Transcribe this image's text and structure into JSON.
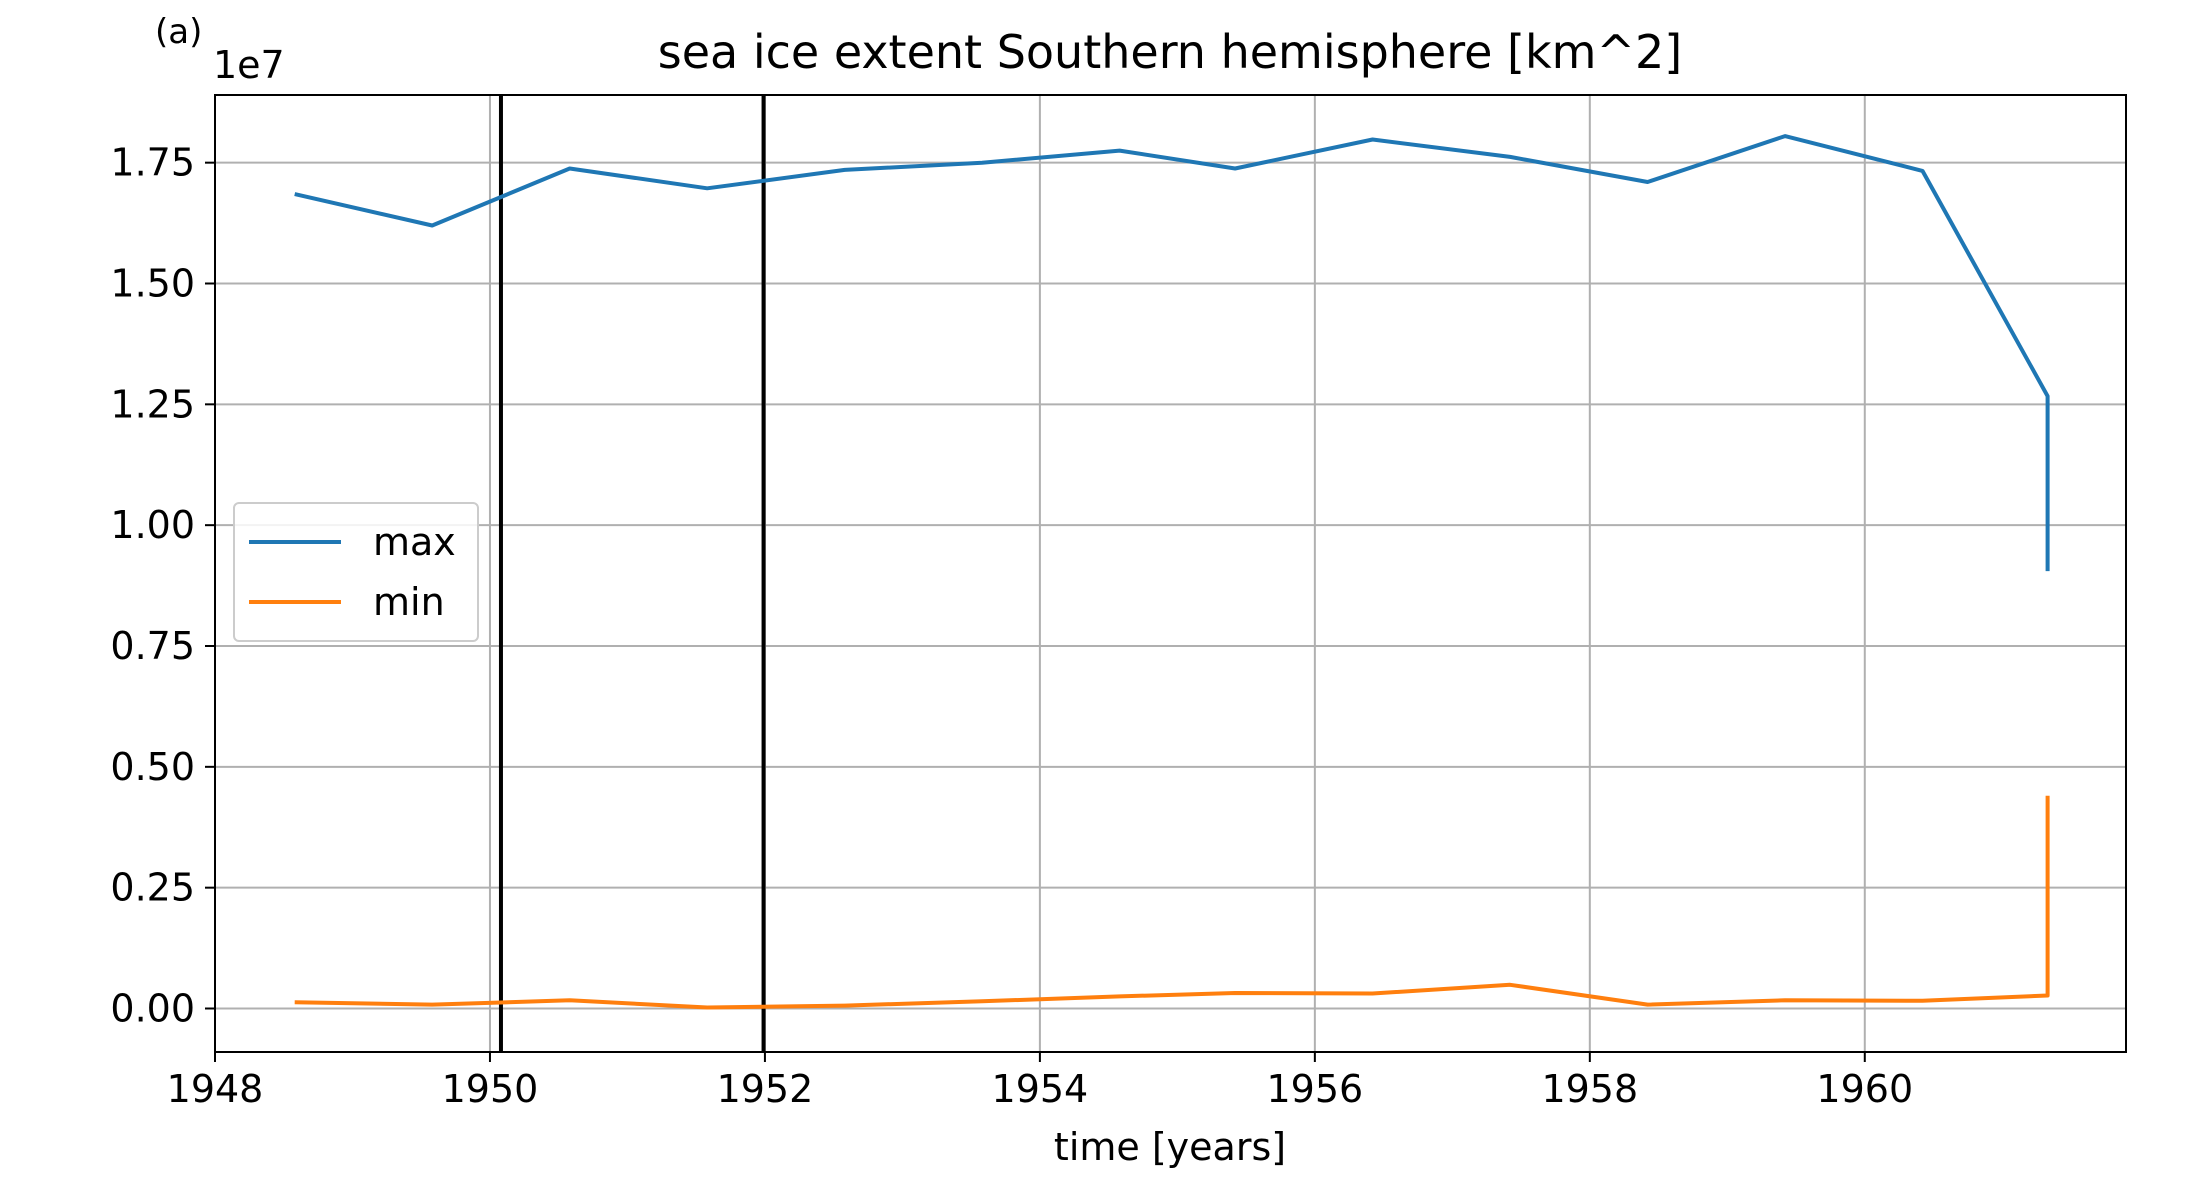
{
  "panel_label": "(a)",
  "chart_data": {
    "type": "line",
    "title": "sea ice extent Southern hemisphere [km^2]",
    "xlabel": "time [years]",
    "ylabel": "",
    "y_offset_label": "1e7",
    "xlim": [
      1948.0,
      1961.9
    ],
    "ylim": [
      -0.09,
      1.89
    ],
    "x_ticks": [
      1948,
      1950,
      1952,
      1954,
      1956,
      1958,
      1960
    ],
    "x_tick_labels": [
      "1948",
      "1950",
      "1952",
      "1954",
      "1956",
      "1958",
      "1960"
    ],
    "y_ticks": [
      0.0,
      0.25,
      0.5,
      0.75,
      1.0,
      1.25,
      1.5,
      1.75
    ],
    "y_tick_labels": [
      "0.00",
      "0.25",
      "0.50",
      "0.75",
      "1.00",
      "1.25",
      "1.50",
      "1.75"
    ],
    "grid": true,
    "legend_position": "center-left",
    "vertical_lines": [
      1950.08,
      1951.99
    ],
    "series": [
      {
        "name": "max",
        "color": "#1f77b4",
        "x": [
          1948.58,
          1949.58,
          1950.58,
          1951.58,
          1952.58,
          1953.58,
          1954.58,
          1955.42,
          1956.42,
          1957.42,
          1958.42,
          1959.42,
          1960.42,
          1961.33,
          1961.33
        ],
        "y": [
          1.685,
          1.62,
          1.738,
          1.697,
          1.735,
          1.75,
          1.775,
          1.738,
          1.798,
          1.762,
          1.71,
          1.805,
          1.733,
          1.267,
          0.905
        ]
      },
      {
        "name": "min",
        "color": "#ff7f0e",
        "x": [
          1948.58,
          1949.58,
          1950.58,
          1951.58,
          1952.58,
          1953.58,
          1954.58,
          1955.42,
          1956.42,
          1957.42,
          1958.42,
          1959.42,
          1960.42,
          1961.33,
          1961.33
        ],
        "y": [
          0.013,
          0.008,
          0.017,
          0.002,
          0.006,
          0.015,
          0.025,
          0.032,
          0.031,
          0.049,
          0.008,
          0.017,
          0.016,
          0.027,
          0.44
        ]
      }
    ]
  }
}
